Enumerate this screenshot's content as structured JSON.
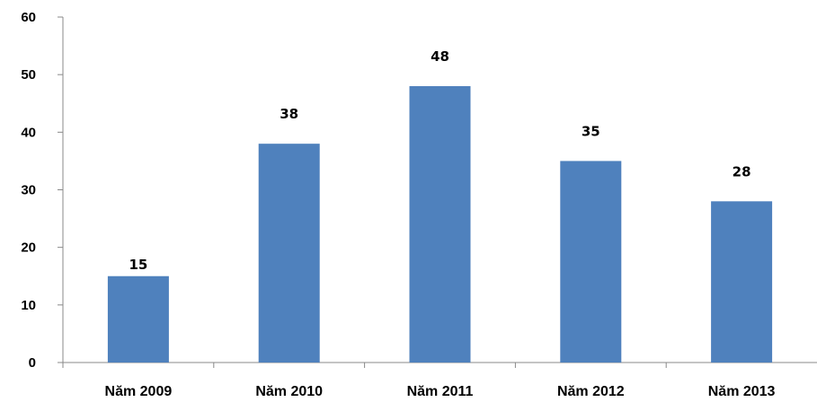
{
  "chart_data": {
    "type": "bar",
    "categories": [
      "Năm 2009",
      "Năm 2010",
      "Năm 2011",
      "Năm 2012",
      "Năm 2013"
    ],
    "values": [
      15,
      38,
      48,
      35,
      28
    ],
    "data_labels": [
      "15",
      "38",
      "48",
      "35",
      "28"
    ],
    "ylim": [
      0,
      60
    ],
    "yticks": [
      0,
      10,
      20,
      30,
      40,
      50,
      60
    ],
    "ytick_labels": [
      "0",
      "10",
      "20",
      "30",
      "40",
      "50",
      "60"
    ],
    "title": "",
    "xlabel": "",
    "ylabel": "",
    "grid": false,
    "legend": "none",
    "colors": {
      "bar": "#4f81bd",
      "axis": "#888888"
    }
  }
}
